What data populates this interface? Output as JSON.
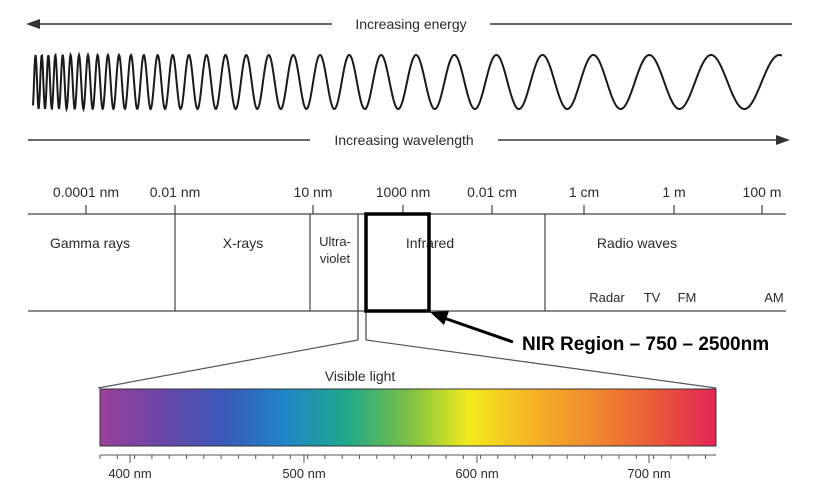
{
  "energy_label": "Increasing energy",
  "wavelength_label": "Increasing wavelength",
  "scale_ticks": [
    "0.0001 nm",
    "0.01 nm",
    "10 nm",
    "1000 nm",
    "0.01 cm",
    "1 cm",
    "1 m",
    "100 m"
  ],
  "bands": {
    "gamma": "Gamma rays",
    "xrays": "X-rays",
    "uv_line1": "Ultra-",
    "uv_line2": "violet",
    "infrared": "Infrared",
    "radio": "Radio waves"
  },
  "radio_sub": [
    "Radar",
    "TV",
    "FM",
    "AM"
  ],
  "callout": "NIR Region – 750 – 2500nm",
  "visible_label": "Visible light",
  "visible_ticks": [
    "400 nm",
    "500 nm",
    "600 nm",
    "700 nm"
  ],
  "colors": {
    "line": "#333333",
    "highlight_box": "#000000",
    "callout_arrow": "#000000"
  }
}
